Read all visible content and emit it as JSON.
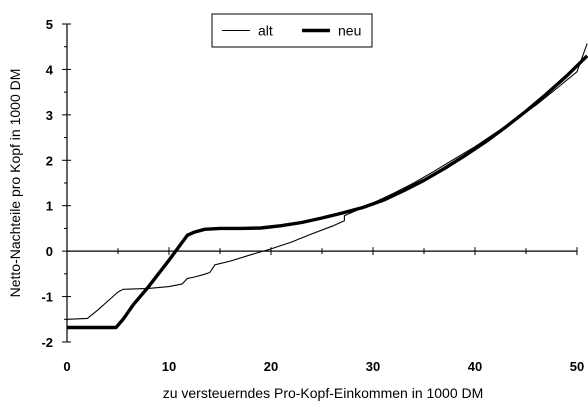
{
  "chart_data": {
    "type": "line",
    "title": "",
    "xlabel": "zu versteuerndes Pro-Kopf-Einkommen in 1000 DM",
    "ylabel": "Netto-Nachteile pro Kopf in 1000 DM",
    "xlim": [
      0,
      50
    ],
    "ylim": [
      -2,
      5
    ],
    "xticks": [
      "0",
      "10",
      "20",
      "30",
      "40",
      "50"
    ],
    "yticks": [
      "-2",
      "-1",
      "0",
      "1",
      "2",
      "3",
      "4",
      "5"
    ],
    "grid": false,
    "legend_position": "top-center",
    "series": [
      {
        "name": "alt",
        "color": "#000000",
        "line_style": "thin",
        "points": [
          [
            0,
            -1.5
          ],
          [
            2,
            -1.48
          ],
          [
            3,
            -1.3
          ],
          [
            4,
            -1.1
          ],
          [
            5,
            -0.9
          ],
          [
            5.5,
            -0.84
          ],
          [
            8,
            -0.82
          ],
          [
            10,
            -0.78
          ],
          [
            11.3,
            -0.72
          ],
          [
            11.8,
            -0.6
          ],
          [
            12.5,
            -0.57
          ],
          [
            13.3,
            -0.52
          ],
          [
            14,
            -0.47
          ],
          [
            14.5,
            -0.3
          ],
          [
            16,
            -0.22
          ],
          [
            18,
            -0.08
          ],
          [
            20,
            0.05
          ],
          [
            22,
            0.2
          ],
          [
            24,
            0.38
          ],
          [
            26,
            0.55
          ],
          [
            27.2,
            0.67
          ],
          [
            27.2,
            0.78
          ],
          [
            28,
            0.86
          ],
          [
            30,
            1.06
          ],
          [
            32,
            1.27
          ],
          [
            34,
            1.5
          ],
          [
            36,
            1.76
          ],
          [
            38,
            2.03
          ],
          [
            40,
            2.3
          ],
          [
            42,
            2.6
          ],
          [
            44,
            2.9
          ],
          [
            46,
            3.22
          ],
          [
            48,
            3.58
          ],
          [
            50,
            3.95
          ],
          [
            51,
            4.57
          ]
        ]
      },
      {
        "name": "neu",
        "color": "#000000",
        "line_style": "thick",
        "points": [
          [
            0,
            -1.68
          ],
          [
            4.8,
            -1.68
          ],
          [
            5.5,
            -1.5
          ],
          [
            6.5,
            -1.18
          ],
          [
            8,
            -0.78
          ],
          [
            10,
            -0.2
          ],
          [
            11.8,
            0.35
          ],
          [
            12.5,
            0.42
          ],
          [
            13.5,
            0.48
          ],
          [
            15,
            0.5
          ],
          [
            17,
            0.5
          ],
          [
            19,
            0.51
          ],
          [
            21,
            0.56
          ],
          [
            23,
            0.63
          ],
          [
            25,
            0.73
          ],
          [
            27,
            0.84
          ],
          [
            29,
            0.96
          ],
          [
            31,
            1.12
          ],
          [
            33,
            1.33
          ],
          [
            35,
            1.56
          ],
          [
            37,
            1.82
          ],
          [
            39,
            2.1
          ],
          [
            41,
            2.4
          ],
          [
            43,
            2.73
          ],
          [
            45,
            3.08
          ],
          [
            47,
            3.46
          ],
          [
            49,
            3.86
          ],
          [
            51,
            4.3
          ]
        ]
      }
    ]
  }
}
